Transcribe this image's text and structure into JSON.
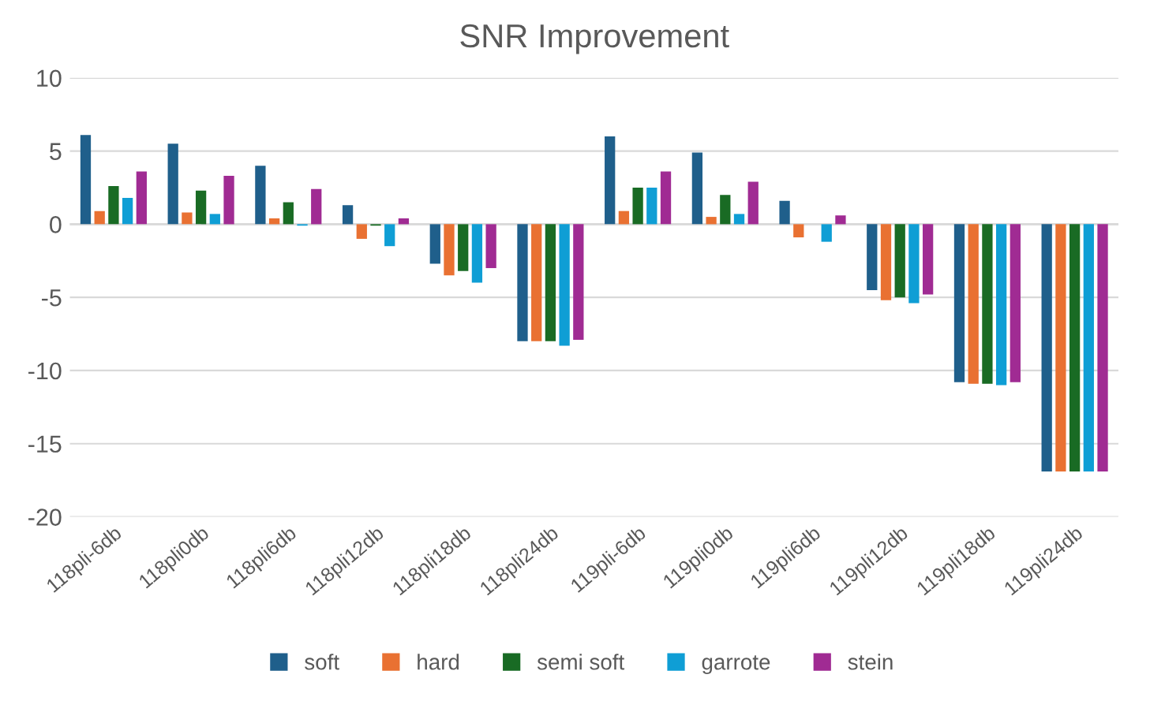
{
  "chart_data": {
    "type": "bar",
    "title": "SNR Improvement",
    "categories": [
      "118pli-6db",
      "118pli0db",
      "118pli6db",
      "118pli12db",
      "118pli18db",
      "118pli24db",
      "119pli-6db",
      "119pli0db",
      "119pli6db",
      "119pli12db",
      "119pli18db",
      "119pli24db"
    ],
    "series": [
      {
        "name": "soft",
        "color": "#1f5f8b",
        "values": [
          6.1,
          5.5,
          4.0,
          1.3,
          -2.7,
          -8.0,
          6.0,
          4.9,
          1.6,
          -4.5,
          -10.8,
          -16.9
        ]
      },
      {
        "name": "hard",
        "color": "#e97132",
        "values": [
          0.9,
          0.8,
          0.4,
          -1.0,
          -3.5,
          -8.0,
          0.9,
          0.5,
          -0.9,
          -5.2,
          -10.9,
          -16.9
        ]
      },
      {
        "name": "semi soft",
        "color": "#196b24",
        "values": [
          2.6,
          2.3,
          1.5,
          -0.1,
          -3.2,
          -8.0,
          2.5,
          2.0,
          0.0,
          -5.0,
          -10.9,
          -16.9
        ]
      },
      {
        "name": "garrote",
        "color": "#0f9ed5",
        "values": [
          1.8,
          0.7,
          -0.1,
          -1.5,
          -4.0,
          -8.3,
          2.5,
          0.7,
          -1.2,
          -5.4,
          -11.0,
          -16.9
        ]
      },
      {
        "name": "stein",
        "color": "#a02b93",
        "values": [
          3.6,
          3.3,
          2.4,
          0.4,
          -3.0,
          -7.9,
          3.6,
          2.9,
          0.6,
          -4.8,
          -10.8,
          -16.9
        ]
      }
    ],
    "ylim": [
      -20,
      10
    ],
    "yticks": [
      -20,
      -15,
      -10,
      -5,
      0,
      5,
      10
    ],
    "grid": "y",
    "legend": "bottom"
  }
}
